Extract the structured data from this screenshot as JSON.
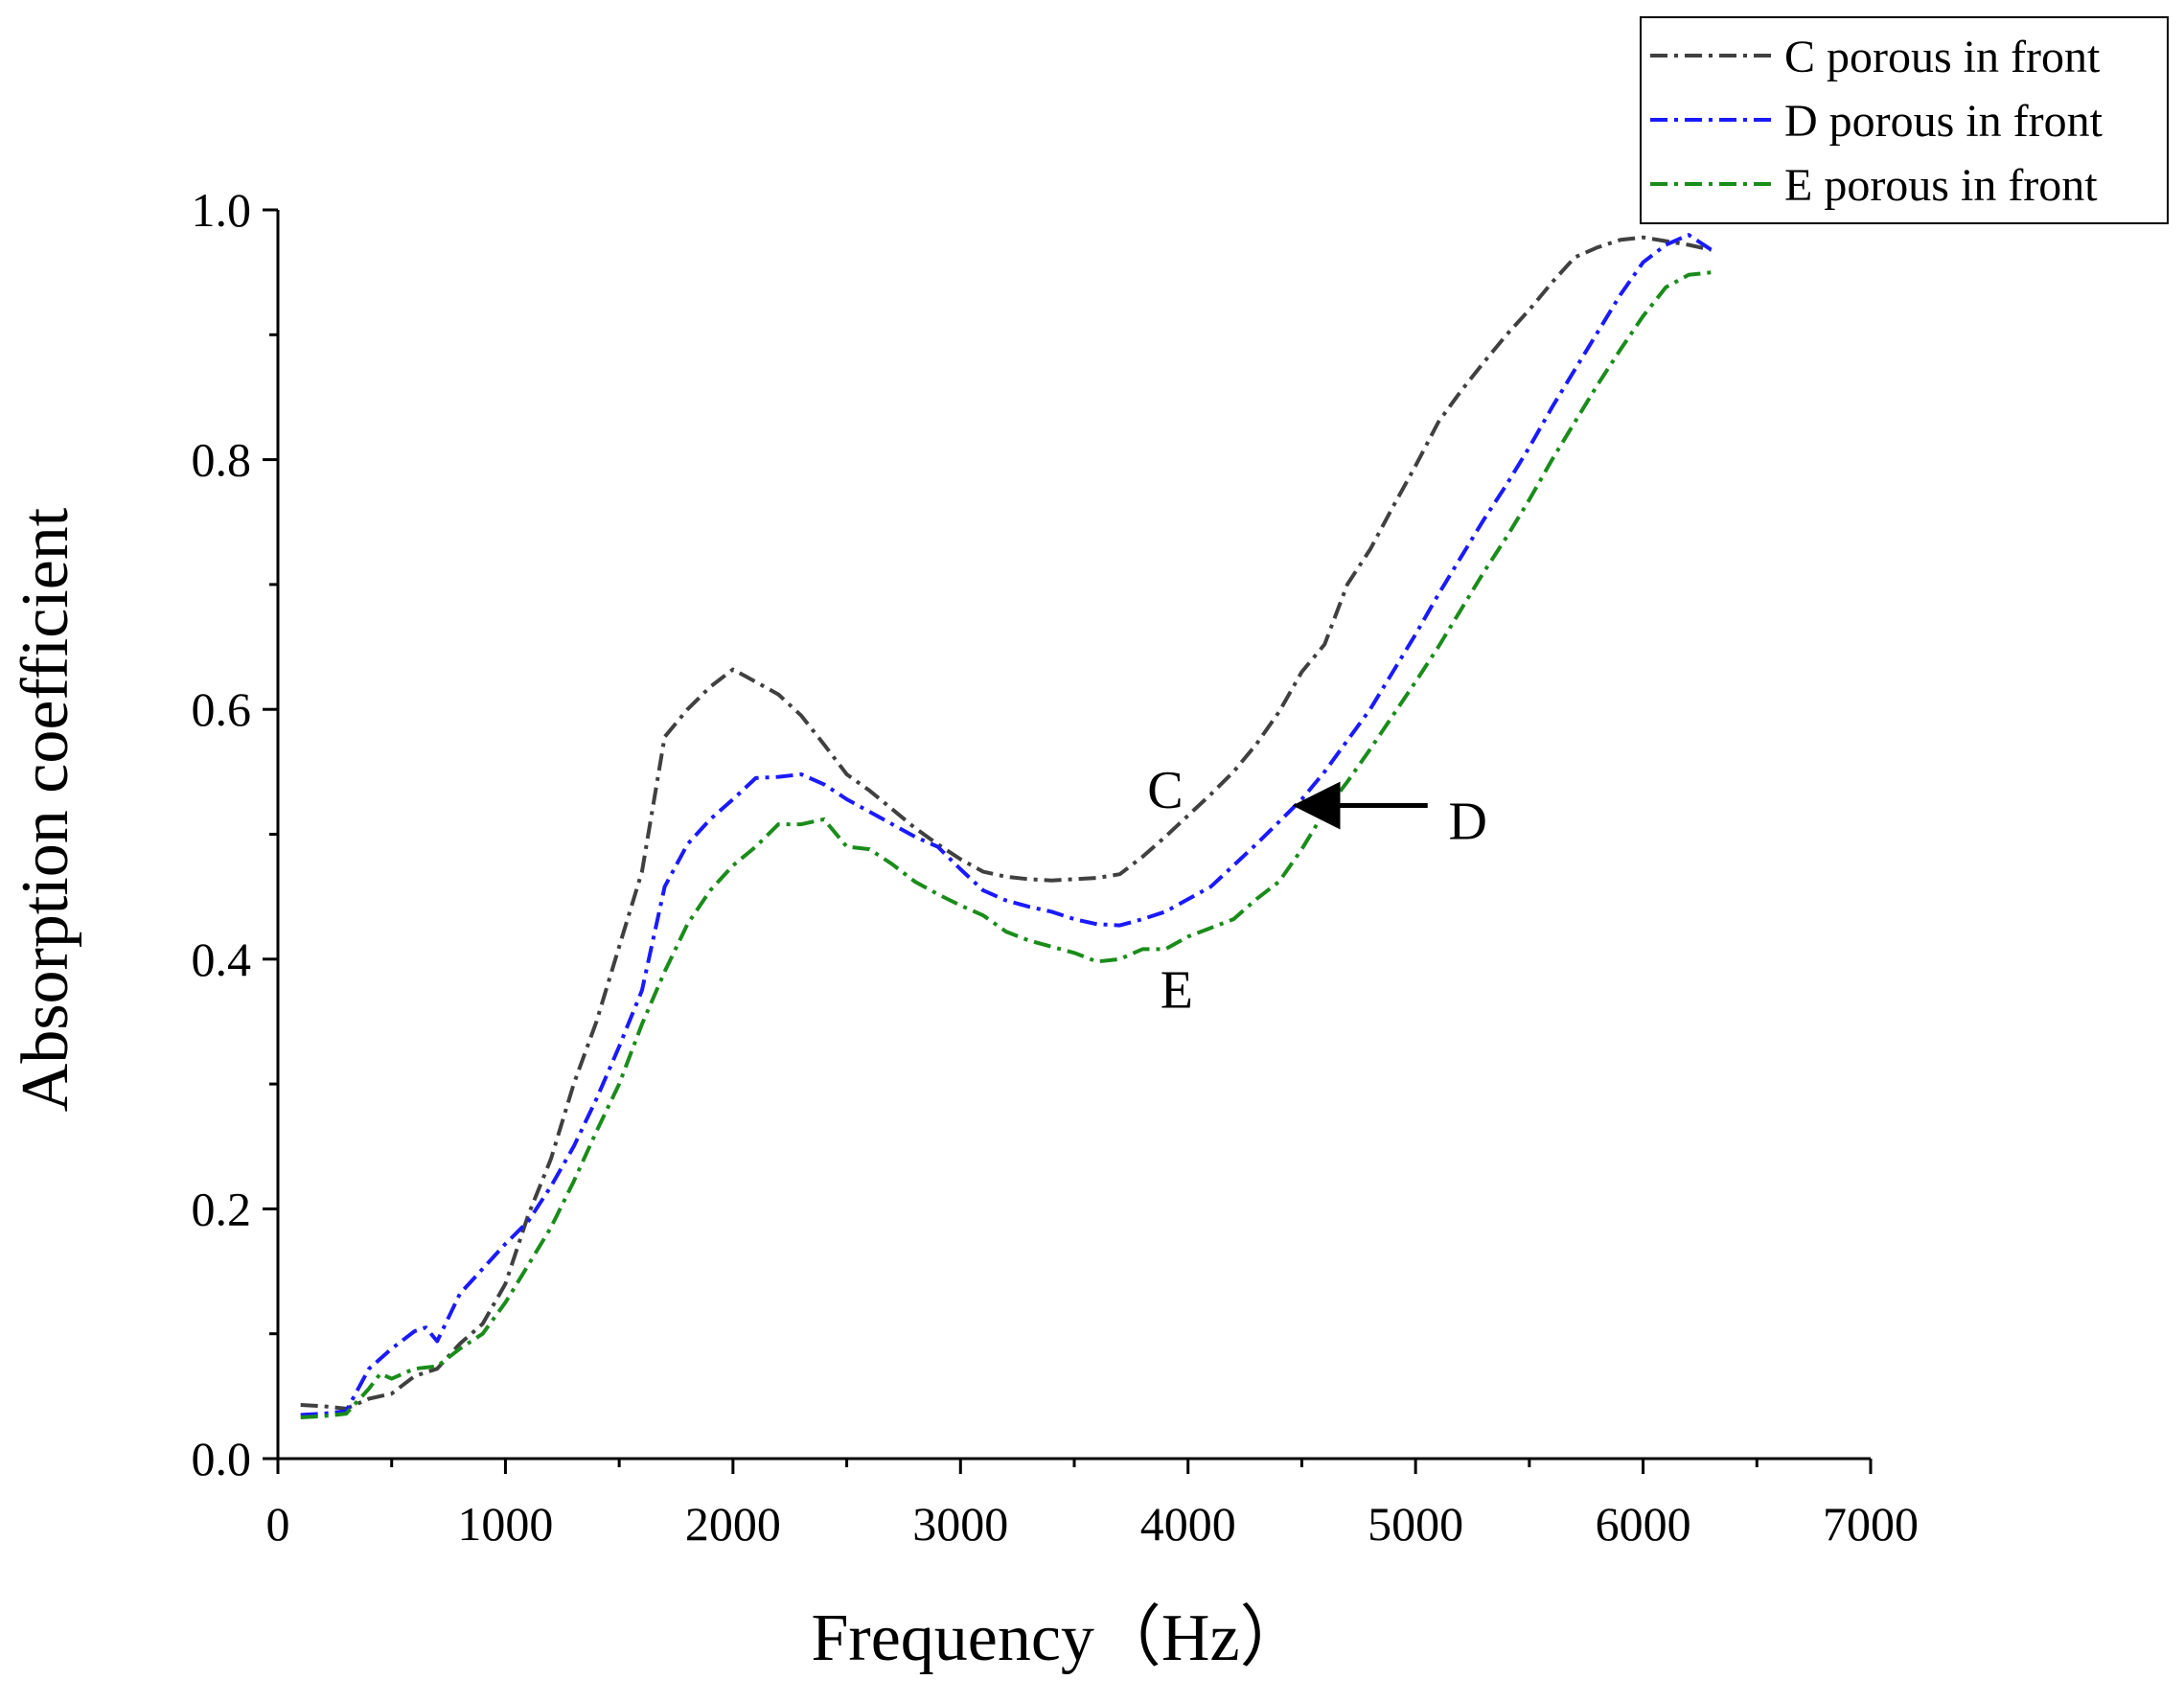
{
  "chart_data": {
    "type": "line",
    "xlabel": "Frequency（Hz）",
    "ylabel": "Absorption coefficient",
    "xlim": [
      0,
      7000
    ],
    "ylim": [
      0.0,
      1.0
    ],
    "xticks": [
      0,
      1000,
      2000,
      3000,
      4000,
      5000,
      6000,
      7000
    ],
    "xtick_labels": [
      "0",
      "1000",
      "2000",
      "3000",
      "4000",
      "5000",
      "6000",
      "7000"
    ],
    "yticks": [
      0.0,
      0.2,
      0.4,
      0.6,
      0.8,
      1.0
    ],
    "ytick_labels": [
      "0.0",
      "0.2",
      "0.4",
      "0.6",
      "0.8",
      "1.0"
    ],
    "legend_position": "top-right",
    "grid": false,
    "series": [
      {
        "name": "C porous in front",
        "color": "#404040",
        "x": [
          100,
          200,
          300,
          400,
          500,
          600,
          700,
          800,
          900,
          1000,
          1100,
          1200,
          1300,
          1400,
          1500,
          1600,
          1700,
          1800,
          1900,
          2000,
          2100,
          2200,
          2300,
          2400,
          2500,
          2600,
          2700,
          2800,
          2900,
          3000,
          3100,
          3200,
          3300,
          3400,
          3500,
          3600,
          3700,
          3800,
          3900,
          4000,
          4100,
          4200,
          4300,
          4400,
          4500,
          4600,
          4700,
          4800,
          4900,
          5000,
          5100,
          5200,
          5300,
          5400,
          5500,
          5600,
          5700,
          5800,
          5900,
          6000,
          6100,
          6200,
          6300
        ],
        "values": [
          0.043,
          0.042,
          0.04,
          0.048,
          0.052,
          0.066,
          0.072,
          0.092,
          0.108,
          0.14,
          0.195,
          0.24,
          0.3,
          0.35,
          0.41,
          0.47,
          0.578,
          0.6,
          0.618,
          0.632,
          0.622,
          0.612,
          0.595,
          0.572,
          0.548,
          0.535,
          0.52,
          0.505,
          0.492,
          0.48,
          0.47,
          0.466,
          0.464,
          0.463,
          0.464,
          0.465,
          0.468,
          0.482,
          0.498,
          0.515,
          0.532,
          0.55,
          0.572,
          0.598,
          0.63,
          0.652,
          0.7,
          0.728,
          0.762,
          0.795,
          0.83,
          0.855,
          0.878,
          0.9,
          0.92,
          0.942,
          0.962,
          0.97,
          0.976,
          0.978,
          0.975,
          0.972,
          0.968
        ]
      },
      {
        "name": "D porous in front",
        "color": "#1a1aff",
        "x": [
          100,
          200,
          300,
          400,
          500,
          600,
          650,
          700,
          800,
          900,
          1000,
          1100,
          1200,
          1300,
          1400,
          1500,
          1600,
          1700,
          1800,
          1900,
          2000,
          2100,
          2200,
          2300,
          2400,
          2500,
          2600,
          2700,
          2800,
          2900,
          3000,
          3100,
          3200,
          3300,
          3400,
          3500,
          3600,
          3700,
          3800,
          3900,
          4000,
          4100,
          4200,
          4300,
          4400,
          4500,
          4600,
          4700,
          4800,
          4900,
          5000,
          5100,
          5200,
          5300,
          5400,
          5500,
          5600,
          5700,
          5800,
          5900,
          6000,
          6100,
          6200,
          6300
        ],
        "values": [
          0.035,
          0.036,
          0.038,
          0.072,
          0.088,
          0.102,
          0.105,
          0.094,
          0.132,
          0.152,
          0.172,
          0.19,
          0.218,
          0.25,
          0.288,
          0.33,
          0.375,
          0.458,
          0.492,
          0.512,
          0.528,
          0.545,
          0.546,
          0.548,
          0.54,
          0.528,
          0.518,
          0.508,
          0.498,
          0.49,
          0.472,
          0.455,
          0.447,
          0.442,
          0.438,
          0.432,
          0.428,
          0.427,
          0.432,
          0.438,
          0.448,
          0.458,
          0.475,
          0.492,
          0.51,
          0.528,
          0.55,
          0.575,
          0.6,
          0.63,
          0.66,
          0.692,
          0.722,
          0.752,
          0.78,
          0.81,
          0.842,
          0.872,
          0.902,
          0.932,
          0.958,
          0.972,
          0.98,
          0.968
        ]
      },
      {
        "name": "E porous in front",
        "color": "#1a8c1a",
        "x": [
          100,
          200,
          300,
          400,
          450,
          500,
          600,
          700,
          800,
          900,
          1000,
          1100,
          1200,
          1300,
          1400,
          1500,
          1600,
          1700,
          1800,
          1900,
          2000,
          2100,
          2200,
          2300,
          2400,
          2500,
          2600,
          2700,
          2800,
          2900,
          3000,
          3100,
          3200,
          3300,
          3400,
          3500,
          3600,
          3700,
          3800,
          3900,
          4000,
          4100,
          4200,
          4300,
          4400,
          4500,
          4600,
          4700,
          4800,
          4900,
          5000,
          5100,
          5200,
          5300,
          5400,
          5500,
          5600,
          5700,
          5800,
          5900,
          6000,
          6100,
          6200,
          6300
        ],
        "values": [
          0.033,
          0.034,
          0.036,
          0.056,
          0.068,
          0.064,
          0.072,
          0.074,
          0.088,
          0.1,
          0.125,
          0.155,
          0.185,
          0.222,
          0.262,
          0.3,
          0.348,
          0.39,
          0.428,
          0.455,
          0.475,
          0.49,
          0.508,
          0.508,
          0.512,
          0.49,
          0.488,
          0.476,
          0.462,
          0.452,
          0.443,
          0.435,
          0.422,
          0.415,
          0.41,
          0.405,
          0.398,
          0.4,
          0.408,
          0.408,
          0.418,
          0.425,
          0.432,
          0.448,
          0.462,
          0.488,
          0.518,
          0.542,
          0.568,
          0.595,
          0.622,
          0.65,
          0.68,
          0.71,
          0.738,
          0.768,
          0.8,
          0.83,
          0.86,
          0.888,
          0.915,
          0.938,
          0.948,
          0.95
        ]
      }
    ],
    "annotations": [
      {
        "text": "C",
        "x": 3900,
        "y": 0.535
      },
      {
        "text": "D",
        "x": 5230,
        "y": 0.51,
        "arrow_to": {
          "x": 4480,
          "y": 0.523
        }
      },
      {
        "text": "E",
        "x": 3950,
        "y": 0.375
      }
    ]
  }
}
